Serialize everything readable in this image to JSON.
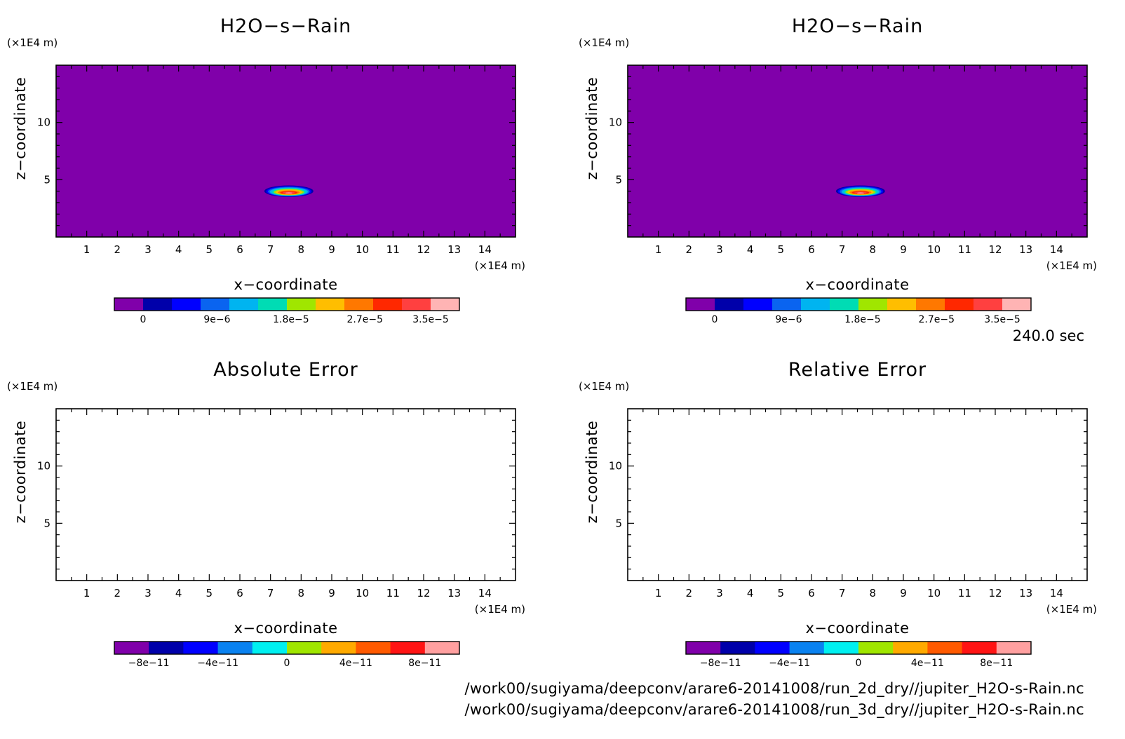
{
  "figure": {
    "time_label": "240.0 sec",
    "source_files": [
      "/work00/sugiyama/deepconv/arare6-20141008/run_2d_dry//jupiter_H2O-s-Rain.nc",
      "/work00/sugiyama/deepconv/arare6-20141008/run_3d_dry//jupiter_H2O-s-Rain.nc"
    ]
  },
  "chart_data": [
    {
      "type": "heatmap",
      "title": "H2O−s−Rain",
      "xlabel": "x−coordinate",
      "ylabel": "z−coordinate",
      "x_unit": "(×1E4 m)",
      "y_unit": "(×1E4 m)",
      "xlim": [
        0,
        15
      ],
      "ylim": [
        0,
        15
      ],
      "x_ticks": [
        1,
        2,
        3,
        4,
        5,
        6,
        7,
        8,
        9,
        10,
        11,
        12,
        13,
        14
      ],
      "y_ticks": [
        5,
        10
      ],
      "background_value": 0,
      "feature": {
        "shape": "blob",
        "x_center": 7.6,
        "z_center": 4.0,
        "x_halfwidth": 0.8,
        "z_halfheight": 0.5,
        "peak_value": 3.5e-05
      },
      "colorbar": {
        "levels": [
          0,
          3.5e-06,
          7e-06,
          1.05e-05,
          1.4e-05,
          1.75e-05,
          2.1e-05,
          2.45e-05,
          2.8e-05,
          3.15e-05,
          3.5e-05
        ],
        "colors": [
          "#8000aa",
          "#0000aa",
          "#0000ff",
          "#0a64f0",
          "#00b4f0",
          "#00dcb4",
          "#a0e600",
          "#ffbe00",
          "#ff7800",
          "#ff2800",
          "#ff4040",
          "#ffb4b4"
        ],
        "tick_labels": [
          "0",
          "9e−6",
          "1.8e−5",
          "2.7e−5",
          "3.5e−5"
        ],
        "tick_values": [
          0,
          9e-06,
          1.8e-05,
          2.7e-05,
          3.5e-05
        ]
      }
    },
    {
      "type": "heatmap",
      "title": "H2O−s−Rain",
      "xlabel": "x−coordinate",
      "ylabel": "z−coordinate",
      "x_unit": "(×1E4 m)",
      "y_unit": "(×1E4 m)",
      "xlim": [
        0,
        15
      ],
      "ylim": [
        0,
        15
      ],
      "x_ticks": [
        1,
        2,
        3,
        4,
        5,
        6,
        7,
        8,
        9,
        10,
        11,
        12,
        13,
        14
      ],
      "y_ticks": [
        5,
        10
      ],
      "background_value": 0,
      "feature": {
        "shape": "blob",
        "x_center": 7.6,
        "z_center": 4.0,
        "x_halfwidth": 0.8,
        "z_halfheight": 0.5,
        "peak_value": 3.5e-05
      },
      "colorbar": {
        "levels": [
          0,
          3.5e-06,
          7e-06,
          1.05e-05,
          1.4e-05,
          1.75e-05,
          2.1e-05,
          2.45e-05,
          2.8e-05,
          3.15e-05,
          3.5e-05
        ],
        "colors": [
          "#8000aa",
          "#0000aa",
          "#0000ff",
          "#0a64f0",
          "#00b4f0",
          "#00dcb4",
          "#a0e600",
          "#ffbe00",
          "#ff7800",
          "#ff2800",
          "#ff4040",
          "#ffb4b4"
        ],
        "tick_labels": [
          "0",
          "9e−6",
          "1.8e−5",
          "2.7e−5",
          "3.5e−5"
        ],
        "tick_values": [
          0,
          9e-06,
          1.8e-05,
          2.7e-05,
          3.5e-05
        ]
      }
    },
    {
      "type": "heatmap",
      "title": "Absolute Error",
      "xlabel": "x−coordinate",
      "ylabel": "z−coordinate",
      "x_unit": "(×1E4 m)",
      "y_unit": "(×1E4 m)",
      "xlim": [
        0,
        15
      ],
      "ylim": [
        0,
        15
      ],
      "x_ticks": [
        1,
        2,
        3,
        4,
        5,
        6,
        7,
        8,
        9,
        10,
        11,
        12,
        13,
        14
      ],
      "y_ticks": [
        5,
        10
      ],
      "background_value": 0,
      "field_color": "#ffffff",
      "colorbar": {
        "levels": [
          -1e-10,
          -8e-11,
          -6e-11,
          -4e-11,
          -2e-11,
          0,
          2e-11,
          4e-11,
          6e-11,
          8e-11,
          1e-10
        ],
        "colors": [
          "#8000aa",
          "#0000aa",
          "#0000ff",
          "#0a82f0",
          "#00f0f0",
          "#a0e600",
          "#ffaa00",
          "#ff5a00",
          "#ff1414",
          "#ffa0a0"
        ],
        "tick_labels": [
          "−8e−11",
          "−4e−11",
          "0",
          "4e−11",
          "8e−11"
        ],
        "tick_values": [
          -8e-11,
          -4e-11,
          0,
          4e-11,
          8e-11
        ]
      }
    },
    {
      "type": "heatmap",
      "title": "Relative Error",
      "xlabel": "x−coordinate",
      "ylabel": "z−coordinate",
      "x_unit": "(×1E4 m)",
      "y_unit": "(×1E4 m)",
      "xlim": [
        0,
        15
      ],
      "ylim": [
        0,
        15
      ],
      "x_ticks": [
        1,
        2,
        3,
        4,
        5,
        6,
        7,
        8,
        9,
        10,
        11,
        12,
        13,
        14
      ],
      "y_ticks": [
        5,
        10
      ],
      "background_value": 0,
      "field_color": "#ffffff",
      "colorbar": {
        "levels": [
          -1e-10,
          -8e-11,
          -6e-11,
          -4e-11,
          -2e-11,
          0,
          2e-11,
          4e-11,
          6e-11,
          8e-11,
          1e-10
        ],
        "colors": [
          "#8000aa",
          "#0000aa",
          "#0000ff",
          "#0a82f0",
          "#00f0f0",
          "#a0e600",
          "#ffaa00",
          "#ff5a00",
          "#ff1414",
          "#ffa0a0"
        ],
        "tick_labels": [
          "−8e−11",
          "−4e−11",
          "0",
          "4e−11",
          "8e−11"
        ],
        "tick_values": [
          -8e-11,
          -4e-11,
          0,
          4e-11,
          8e-11
        ]
      }
    }
  ]
}
